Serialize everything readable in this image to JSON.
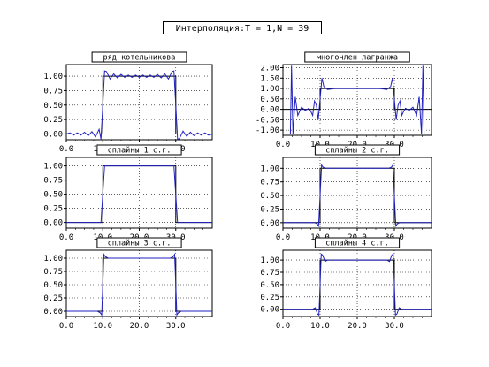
{
  "title": "Интерполяция:T = 1,N = 39",
  "colors": {
    "reference": "#000000",
    "interpolant": "#2020c0",
    "grid": "#000000",
    "frame": "#000000"
  },
  "chart_data": [
    {
      "type": "line",
      "title": "ряд котельникова",
      "xlim": [
        0,
        40
      ],
      "ylim": [
        -0.1,
        1.2
      ],
      "xticks": [
        0,
        10,
        20,
        30
      ],
      "xtick_labels": [
        "0.0",
        "10.0",
        "20.0",
        "30.0"
      ],
      "yticks": [
        0,
        0.25,
        0.5,
        0.75,
        1.0
      ],
      "ytick_labels": [
        "0.00",
        "0.25",
        "0.50",
        "0.75",
        "1.00"
      ],
      "grid": true,
      "series": [
        {
          "kind": "reference",
          "x": [
            0,
            10,
            10,
            30,
            30,
            40
          ],
          "y": [
            0,
            0,
            1,
            1,
            0,
            0
          ]
        },
        {
          "kind": "interpolant",
          "x": [
            0,
            1,
            2,
            3,
            4,
            5,
            6,
            7,
            8,
            9,
            9.5,
            10,
            10.5,
            11,
            12,
            13,
            14,
            15,
            16,
            17,
            18,
            19,
            20,
            21,
            22,
            23,
            24,
            25,
            26,
            27,
            28,
            29,
            29.5,
            30,
            30.5,
            31,
            32,
            33,
            34,
            35,
            36,
            37,
            38,
            39,
            40
          ],
          "y": [
            0.0,
            0.02,
            -0.02,
            0.02,
            -0.02,
            0.03,
            -0.03,
            0.04,
            -0.05,
            0.08,
            -0.09,
            0.5,
            1.09,
            1.08,
            0.95,
            1.04,
            0.97,
            1.03,
            0.98,
            1.02,
            0.98,
            1.02,
            0.98,
            1.02,
            0.98,
            1.02,
            0.98,
            1.03,
            0.97,
            1.04,
            0.95,
            1.08,
            1.09,
            0.5,
            -0.09,
            -0.08,
            0.05,
            -0.04,
            0.03,
            -0.03,
            0.02,
            -0.02,
            0.02,
            -0.02,
            0.0
          ]
        }
      ]
    },
    {
      "type": "line",
      "title": "многочлен лагранжа",
      "xlim": [
        0,
        40
      ],
      "ylim": [
        -1.25,
        2.15
      ],
      "xticks": [
        0,
        10,
        20,
        30
      ],
      "xtick_labels": [
        "0.0",
        "10.0",
        "20.0",
        "30.0"
      ],
      "yticks": [
        -1,
        -0.5,
        0,
        0.5,
        1,
        1.5,
        2
      ],
      "ytick_labels": [
        "-1.00",
        "-0.50",
        "0.00",
        "0.50",
        "1.00",
        "1.50",
        "2.00"
      ],
      "grid": true,
      "series": [
        {
          "kind": "reference",
          "x": [
            0,
            10,
            10,
            30,
            30,
            40
          ],
          "y": [
            0,
            0,
            1,
            1,
            0,
            0
          ]
        },
        {
          "kind": "interpolant",
          "x": [
            2,
            2.3,
            2.7,
            3.3,
            4,
            5,
            6,
            7,
            7.5,
            8,
            8.5,
            9,
            9.5,
            10,
            10.5,
            11,
            12,
            14,
            20,
            26,
            28,
            29,
            29.5,
            30,
            30.5,
            31,
            31.5,
            32,
            32.5,
            33,
            34,
            35,
            36,
            36.7,
            37.3,
            37.7,
            38
          ],
          "y": [
            -1.2,
            2.1,
            -1.2,
            0.6,
            -0.3,
            0.1,
            -0.05,
            0.05,
            -0.1,
            -0.3,
            0.4,
            0.2,
            -0.5,
            0.5,
            1.5,
            1.1,
            0.95,
            1.0,
            1.0,
            1.0,
            0.95,
            1.1,
            1.5,
            0.5,
            -0.5,
            0.2,
            0.4,
            -0.3,
            -0.1,
            0.05,
            -0.05,
            0.1,
            -0.3,
            0.6,
            -1.2,
            2.1,
            -1.2
          ]
        }
      ]
    },
    {
      "type": "line",
      "title": "сплайны 1 с.г.",
      "xlim": [
        0,
        40
      ],
      "ylim": [
        -0.1,
        1.15
      ],
      "xticks": [
        0,
        10,
        20,
        30
      ],
      "xtick_labels": [
        "0.0",
        "10.0",
        "20.0",
        "30.0"
      ],
      "yticks": [
        0,
        0.25,
        0.5,
        0.75,
        1.0
      ],
      "ytick_labels": [
        "0.00",
        "0.25",
        "0.50",
        "0.75",
        "1.00"
      ],
      "grid": true,
      "series": [
        {
          "kind": "reference",
          "x": [
            0,
            10,
            10,
            30,
            30,
            40
          ],
          "y": [
            0,
            0,
            1,
            1,
            0,
            0
          ]
        },
        {
          "kind": "interpolant",
          "x": [
            0,
            9.5,
            10.5,
            29.5,
            30.5,
            40
          ],
          "y": [
            0,
            0,
            1,
            1,
            0,
            0
          ]
        }
      ]
    },
    {
      "type": "line",
      "title": "сплайны 2 с.г.",
      "xlim": [
        0,
        40
      ],
      "ylim": [
        -0.1,
        1.2
      ],
      "xticks": [
        0,
        10,
        20,
        30
      ],
      "xtick_labels": [
        "0.0",
        "10.0",
        "20.0",
        "30.0"
      ],
      "yticks": [
        0,
        0.25,
        0.5,
        0.75,
        1.0
      ],
      "ytick_labels": [
        "0.00",
        "0.25",
        "0.50",
        "0.75",
        "1.00"
      ],
      "grid": true,
      "series": [
        {
          "kind": "reference",
          "x": [
            0,
            10,
            10,
            30,
            30,
            40
          ],
          "y": [
            0,
            0,
            1,
            1,
            0,
            0
          ]
        },
        {
          "kind": "interpolant",
          "x": [
            0,
            8.5,
            9.2,
            9.6,
            10,
            10.4,
            10.8,
            11.5,
            28.5,
            29.2,
            29.6,
            30,
            30.4,
            30.8,
            31.5,
            40
          ],
          "y": [
            0,
            0,
            -0.02,
            -0.06,
            0.5,
            1.06,
            1.02,
            1.0,
            1.0,
            1.02,
            1.06,
            0.5,
            -0.06,
            -0.02,
            0,
            0
          ]
        }
      ]
    },
    {
      "type": "line",
      "title": "сплайны 3 с.г.",
      "xlim": [
        0,
        40
      ],
      "ylim": [
        -0.1,
        1.15
      ],
      "xticks": [
        0,
        10,
        20,
        30
      ],
      "xtick_labels": [
        "0.0",
        "10.0",
        "20.0",
        "30.0"
      ],
      "yticks": [
        0,
        0.25,
        0.5,
        0.75,
        1.0
      ],
      "ytick_labels": [
        "0.00",
        "0.25",
        "0.50",
        "0.75",
        "1.00"
      ],
      "grid": true,
      "series": [
        {
          "kind": "reference",
          "x": [
            0,
            10,
            10,
            30,
            30,
            40
          ],
          "y": [
            0,
            0,
            1,
            1,
            0,
            0
          ]
        },
        {
          "kind": "interpolant",
          "x": [
            0,
            8.5,
            9.3,
            9.7,
            10,
            10.3,
            10.7,
            11.5,
            28.5,
            29.3,
            29.7,
            30,
            30.3,
            30.7,
            31.5,
            40
          ],
          "y": [
            0,
            0,
            -0.03,
            -0.07,
            0.5,
            1.07,
            1.03,
            1.0,
            1.0,
            1.03,
            1.07,
            0.5,
            -0.07,
            -0.03,
            0,
            0
          ]
        }
      ]
    },
    {
      "type": "line",
      "title": "сплайны 4 с.г.",
      "xlim": [
        0,
        40
      ],
      "ylim": [
        -0.15,
        1.2
      ],
      "xticks": [
        0,
        10,
        20,
        30
      ],
      "xtick_labels": [
        "0.0",
        "10.0",
        "20.0",
        "30.0"
      ],
      "yticks": [
        0,
        0.25,
        0.5,
        0.75,
        1.0
      ],
      "ytick_labels": [
        "0.00",
        "0.25",
        "0.50",
        "0.75",
        "1.00"
      ],
      "grid": true,
      "series": [
        {
          "kind": "reference",
          "x": [
            0,
            10,
            10,
            30,
            30,
            40
          ],
          "y": [
            0,
            0,
            1,
            1,
            0,
            0
          ]
        },
        {
          "kind": "interpolant",
          "x": [
            0,
            8,
            8.7,
            9.3,
            9.7,
            10,
            10.3,
            10.7,
            11.3,
            12,
            28,
            28.7,
            29.3,
            29.7,
            30,
            30.3,
            30.7,
            31.3,
            32,
            40
          ],
          "y": [
            0,
            0,
            0.03,
            -0.1,
            -0.12,
            0.5,
            1.12,
            1.1,
            0.97,
            1.0,
            1.0,
            0.97,
            1.1,
            1.12,
            0.5,
            -0.12,
            -0.1,
            0.03,
            0,
            0
          ]
        }
      ]
    }
  ]
}
